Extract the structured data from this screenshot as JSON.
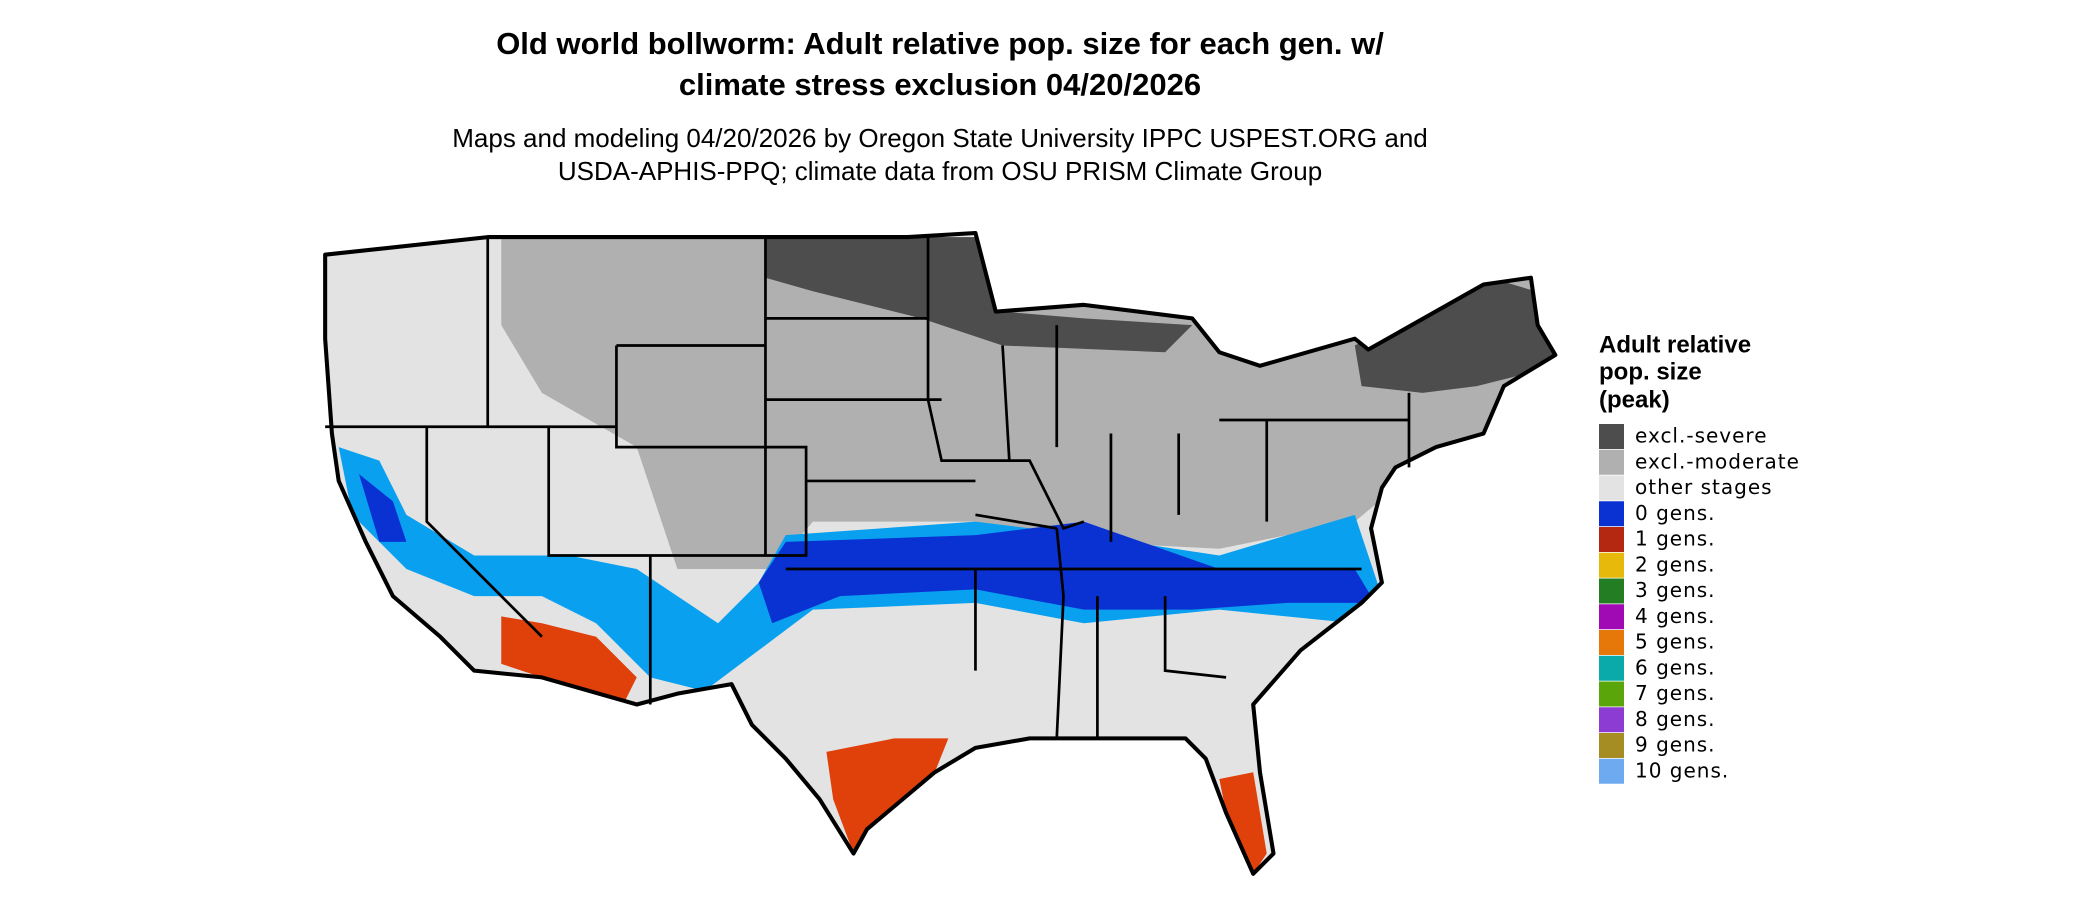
{
  "title": [
    "Old world bollworm: Adult relative pop. size for each gen. w/",
    "climate stress exclusion 04/20/2026"
  ],
  "subtitle": [
    "Maps and modeling 04/20/2026 by Oregon State University IPPC USPEST.ORG and",
    "USDA-APHIS-PPQ; climate data from OSU PRISM Climate Group"
  ],
  "legend": {
    "title": [
      "Adult relative",
      "pop. size",
      "(peak)"
    ],
    "items": [
      {
        "label": "excl.-severe",
        "color": "#4d4d4d"
      },
      {
        "label": "excl.-moderate",
        "color": "#b0b0b0"
      },
      {
        "label": "other stages",
        "color": "#e3e3e3"
      },
      {
        "label": "0 gens.",
        "color": "#0a32d2"
      },
      {
        "label": "1 gens.",
        "color": "#b42812"
      },
      {
        "label": "2 gens.",
        "color": "#e6b90a"
      },
      {
        "label": "3 gens.",
        "color": "#237d23"
      },
      {
        "label": "4 gens.",
        "color": "#a00ab4"
      },
      {
        "label": "5 gens.",
        "color": "#e6780a"
      },
      {
        "label": "6 gens.",
        "color": "#0aaaaa"
      },
      {
        "label": "7 gens.",
        "color": "#5aa50a"
      },
      {
        "label": "8 gens.",
        "color": "#8c3cd2"
      },
      {
        "label": "9 gens.",
        "color": "#a58c23"
      },
      {
        "label": "10 gens.",
        "color": "#6eaaf0"
      }
    ]
  }
}
